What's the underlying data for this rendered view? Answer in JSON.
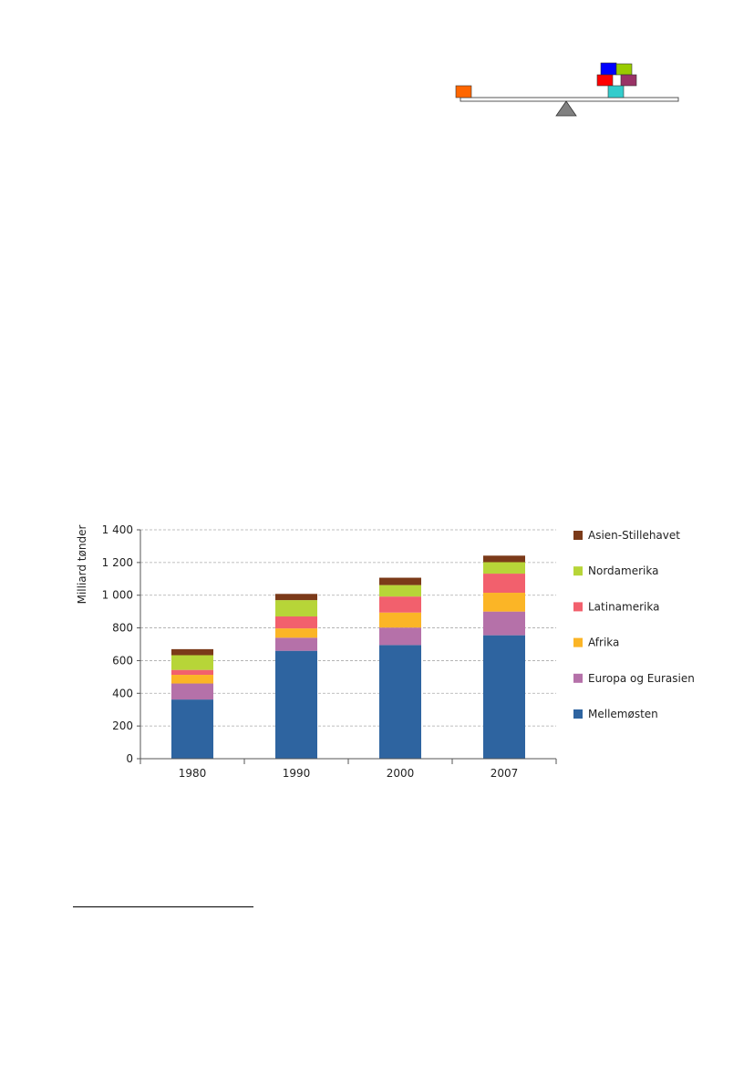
{
  "logo": {
    "colors": {
      "orange": "#ff6600",
      "blue": "#0000ff",
      "green": "#99cc00",
      "red": "#ff0000",
      "purple": "#993366",
      "cyan": "#33cccc",
      "pivot": "#808080"
    }
  },
  "chart_data": {
    "type": "bar",
    "stacked": true,
    "ylabel": "Milliard tønder",
    "ylim": [
      0,
      1400
    ],
    "yticks": [
      "0",
      "200",
      "400",
      "600",
      "800",
      "1 000",
      "1 200",
      "1 400"
    ],
    "grid": true,
    "legend_position": "right",
    "categories": [
      "1980",
      "1990",
      "2000",
      "2007"
    ],
    "series": [
      {
        "name": "Mellemøsten",
        "color": "#2e64a0",
        "values": [
          362,
          660,
          695,
          755
        ]
      },
      {
        "name": "Europa og Eurasien",
        "color": "#b571a9",
        "values": [
          98,
          80,
          107,
          145
        ]
      },
      {
        "name": "Afrika",
        "color": "#fbb526",
        "values": [
          53,
          57,
          92,
          115
        ]
      },
      {
        "name": "Latinamerika",
        "color": "#f2606d",
        "values": [
          30,
          73,
          98,
          117
        ]
      },
      {
        "name": "Nordamerika",
        "color": "#b7d538",
        "values": [
          90,
          100,
          70,
          70
        ]
      },
      {
        "name": "Asien-Stillehavet",
        "color": "#7b3a19",
        "values": [
          37,
          38,
          45,
          40
        ]
      }
    ]
  }
}
